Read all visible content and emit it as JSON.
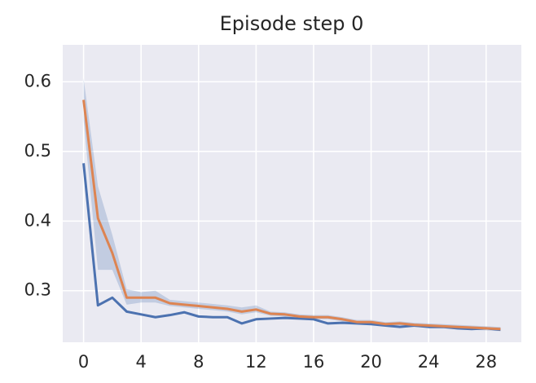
{
  "chart_data": {
    "type": "line",
    "title": "Episode step 0",
    "x": [
      0,
      1,
      2,
      3,
      4,
      5,
      6,
      7,
      8,
      9,
      10,
      11,
      12,
      13,
      14,
      15,
      16,
      17,
      18,
      19,
      20,
      21,
      22,
      23,
      24,
      25,
      26,
      27,
      28,
      29
    ],
    "series": [
      {
        "color": "#4c72b0",
        "values": [
          0.483,
          0.279,
          0.29,
          0.27,
          0.266,
          0.262,
          0.265,
          0.269,
          0.263,
          0.262,
          0.262,
          0.253,
          0.259,
          0.26,
          0.261,
          0.26,
          0.259,
          0.253,
          0.254,
          0.253,
          0.252,
          0.25,
          0.248,
          0.25,
          0.248,
          0.248,
          0.246,
          0.245,
          0.246,
          0.244
        ]
      },
      {
        "color": "#dd8452",
        "values": [
          0.574,
          0.404,
          0.354,
          0.29,
          0.29,
          0.29,
          0.282,
          0.28,
          0.278,
          0.276,
          0.274,
          0.27,
          0.273,
          0.267,
          0.266,
          0.263,
          0.262,
          0.262,
          0.259,
          0.255,
          0.255,
          0.252,
          0.253,
          0.251,
          0.25,
          0.249,
          0.248,
          0.247,
          0.246,
          0.245
        ]
      }
    ],
    "band": {
      "color": "#4c72b0",
      "lower": [
        0.545,
        0.33,
        0.33,
        0.28,
        0.283,
        0.283,
        0.278,
        0.276,
        0.274,
        0.272,
        0.27,
        0.266,
        0.269,
        0.264,
        0.263,
        0.26,
        0.259,
        0.259,
        0.256,
        0.252,
        0.252,
        0.249,
        0.25,
        0.248,
        0.247,
        0.246,
        0.245,
        0.244,
        0.243,
        0.242
      ],
      "upper": [
        0.605,
        0.45,
        0.38,
        0.302,
        0.298,
        0.3,
        0.287,
        0.285,
        0.283,
        0.281,
        0.279,
        0.276,
        0.279,
        0.27,
        0.269,
        0.266,
        0.265,
        0.265,
        0.262,
        0.258,
        0.258,
        0.255,
        0.256,
        0.254,
        0.253,
        0.252,
        0.251,
        0.25,
        0.249,
        0.248
      ]
    },
    "xlim": [
      -1.45,
      30.45
    ],
    "ylim": [
      0.226,
      0.653
    ],
    "xticks": [
      0,
      4,
      8,
      12,
      16,
      20,
      24,
      28
    ],
    "yticks": [
      0.3,
      0.4,
      0.5,
      0.6
    ],
    "grid": true
  }
}
